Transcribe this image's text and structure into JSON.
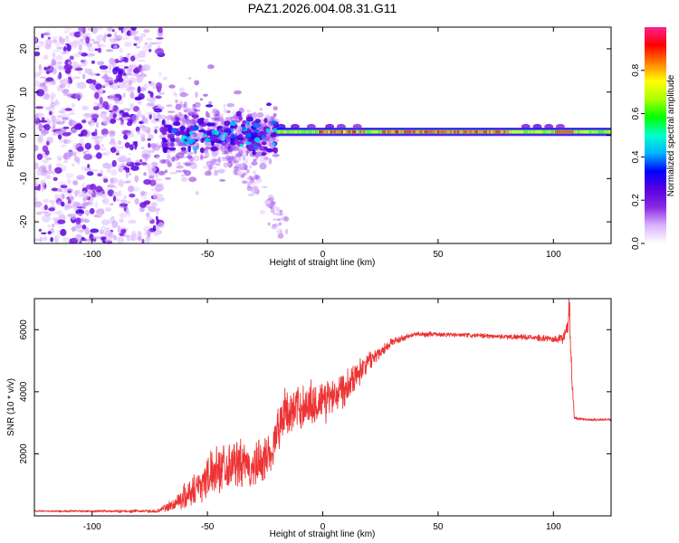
{
  "figure_title": "PAZ1.2026.004.08.31.G11",
  "chart_data": [
    {
      "type": "heatmap",
      "title": "PAZ1.2026.004.08.31.G11",
      "xlabel": "Height of straight line (km)",
      "ylabel": "Frequency (Hz)",
      "xlim": [
        -125,
        125
      ],
      "ylim": [
        -25,
        25
      ],
      "xticks": [
        -100,
        -50,
        0,
        50,
        100
      ],
      "xtick_labels": [
        "-100",
        "-50",
        "0",
        "50",
        "100"
      ],
      "yticks": [
        20,
        10,
        0,
        -10,
        -20
      ],
      "ytick_labels": [
        "20",
        "10",
        "0",
        "-10",
        "-20"
      ],
      "colorbar": {
        "label": "Normalized spectral amplitude",
        "range": [
          0,
          1
        ],
        "ticks": [
          0.0,
          0.2,
          0.4,
          0.6,
          0.8
        ],
        "tick_labels": [
          "0.0",
          "0.2",
          "0.4",
          "0.6",
          "0.8"
        ],
        "colormap": [
          "#ffffff",
          "#d9b3ff",
          "#8a2be2",
          "#5a00e0",
          "#0000ff",
          "#00b4ff",
          "#00ffcc",
          "#00ff00",
          "#aaff00",
          "#ffff00",
          "#ff8000",
          "#ff0000",
          "#ff2090"
        ]
      },
      "features": {
        "noise_region_x": [
          -125,
          -70
        ],
        "transition_region_x": [
          -70,
          -20
        ],
        "stable_line_x": [
          -20,
          125
        ],
        "stable_line_frequency_hz": 0.8
      }
    },
    {
      "type": "line",
      "xlabel": "Height of straight line (km)",
      "ylabel": "SNR (10 * v/v)",
      "xlim": [
        -125,
        125
      ],
      "ylim": [
        0,
        7000
      ],
      "xticks": [
        -100,
        -50,
        0,
        50,
        100
      ],
      "xtick_labels": [
        "-100",
        "-50",
        "0",
        "50",
        "100"
      ],
      "yticks": [
        2000,
        4000,
        6000
      ],
      "ytick_labels": [
        "2000",
        "4000",
        "6000"
      ],
      "line_color": "#ee3333",
      "envelope": {
        "x": [
          -125,
          -72,
          -65,
          -55,
          -45,
          -38,
          -30,
          -22,
          -18,
          -10,
          0,
          10,
          20,
          30,
          40,
          50,
          70,
          90,
          100,
          104,
          106,
          107,
          108,
          109,
          110,
          115,
          125
        ],
        "mean": [
          150,
          150,
          350,
          900,
          1600,
          1700,
          1500,
          2100,
          3200,
          3500,
          3700,
          4200,
          5000,
          5600,
          5850,
          5850,
          5800,
          5750,
          5700,
          5700,
          6000,
          6400,
          4500,
          3200,
          3150,
          3100,
          3100
        ],
        "spread": [
          30,
          60,
          250,
          700,
          900,
          900,
          900,
          900,
          900,
          900,
          900,
          700,
          350,
          150,
          100,
          90,
          90,
          100,
          120,
          200,
          300,
          400,
          400,
          80,
          60,
          50,
          50
        ]
      }
    }
  ]
}
